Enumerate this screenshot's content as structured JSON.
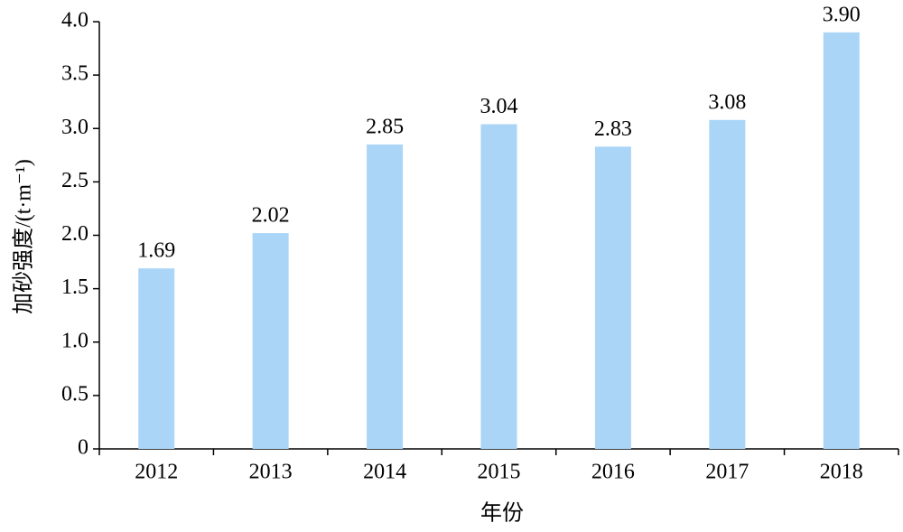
{
  "chart_data": {
    "type": "bar",
    "xlabel": "年份",
    "ylabel": "加砂强度/(t·m⁻¹)",
    "categories": [
      "2012",
      "2013",
      "2014",
      "2015",
      "2016",
      "2017",
      "2018"
    ],
    "values": [
      1.69,
      2.02,
      2.85,
      3.04,
      2.83,
      3.08,
      3.9
    ],
    "value_labels": [
      "1.69",
      "2.02",
      "2.85",
      "3.04",
      "2.83",
      "3.08",
      "3.90"
    ],
    "color": "#aad5f7",
    "ylim": [
      0,
      4
    ],
    "yticks": [
      0,
      0.5,
      {
        "value": 1,
        "label": "1.0"
      },
      1.5,
      {
        "value": 2,
        "label": "2.0"
      },
      2.5,
      {
        "value": 3,
        "label": "3.0"
      },
      3.5,
      {
        "value": 4,
        "label": "4.0"
      }
    ],
    "grid": false
  }
}
